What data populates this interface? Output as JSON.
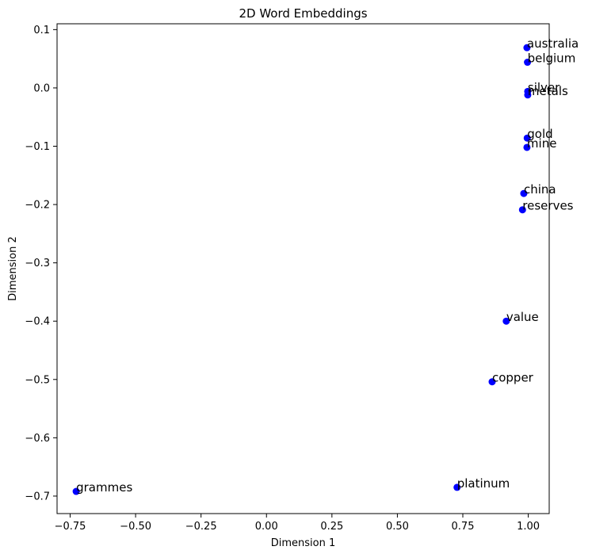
{
  "chart_data": {
    "type": "scatter",
    "title": "2D Word Embeddings",
    "xlabel": "Dimension 1",
    "ylabel": "Dimension 2",
    "xlim": [
      -0.8,
      1.08
    ],
    "ylim": [
      -0.73,
      0.11
    ],
    "x_ticks": [
      -0.75,
      -0.5,
      -0.25,
      0.0,
      0.25,
      0.5,
      0.75,
      1.0
    ],
    "x_tick_labels": [
      "−0.75",
      "−0.50",
      "−0.25",
      "0.00",
      "0.25",
      "0.50",
      "0.75",
      "1.00"
    ],
    "y_ticks": [
      0.1,
      0.0,
      -0.1,
      -0.2,
      -0.3,
      -0.4,
      -0.5,
      -0.6,
      -0.7
    ],
    "y_tick_labels": [
      "0.1",
      "0.0",
      "−0.1",
      "−0.2",
      "−0.3",
      "−0.4",
      "−0.5",
      "−0.6",
      "−0.7"
    ],
    "grid": false,
    "marker_color": "#0000ff",
    "points": [
      {
        "label": "australia",
        "x": 0.995,
        "y": 0.069
      },
      {
        "label": "belgium",
        "x": 0.997,
        "y": 0.044
      },
      {
        "label": "silver",
        "x": 0.998,
        "y": -0.006
      },
      {
        "label": "metals",
        "x": 0.998,
        "y": -0.012
      },
      {
        "label": "gold",
        "x": 0.996,
        "y": -0.086
      },
      {
        "label": "mine",
        "x": 0.995,
        "y": -0.102
      },
      {
        "label": "china",
        "x": 0.983,
        "y": -0.181
      },
      {
        "label": "reserves",
        "x": 0.978,
        "y": -0.209
      },
      {
        "label": "value",
        "x": 0.916,
        "y": -0.4
      },
      {
        "label": "copper",
        "x": 0.862,
        "y": -0.504
      },
      {
        "label": "platinum",
        "x": 0.728,
        "y": -0.685
      },
      {
        "label": "grammes",
        "x": -0.727,
        "y": -0.692
      }
    ]
  }
}
